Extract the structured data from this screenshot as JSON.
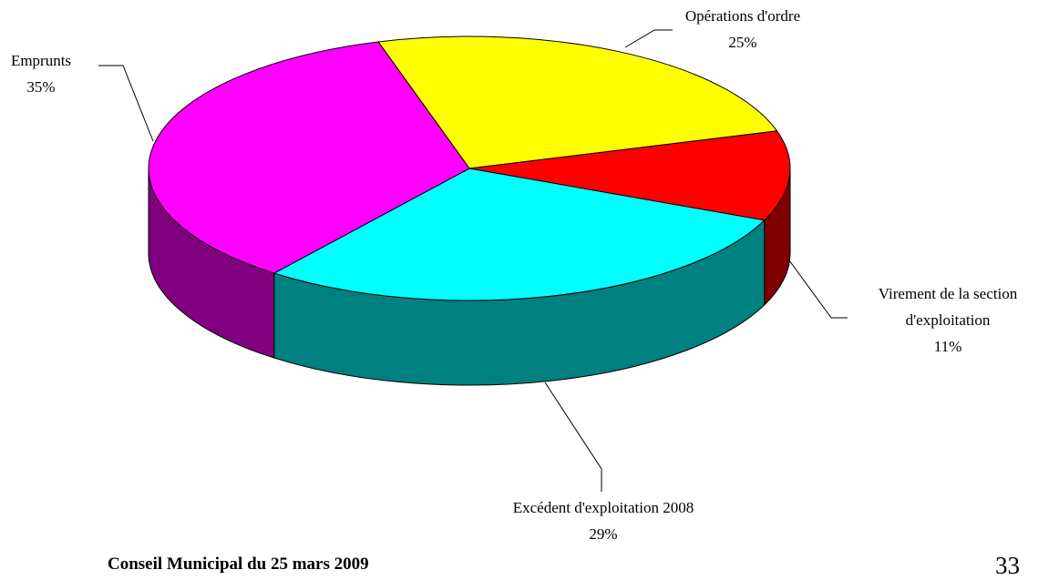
{
  "chart_data": {
    "type": "pie",
    "categories": [
      "Opérations d'ordre",
      "Virement de la section d'exploitation",
      "Excédent d'exploitation 2008",
      "Emprunts"
    ],
    "values": [
      25,
      11,
      29,
      35
    ],
    "value_labels": [
      "25%",
      "11%",
      "29%",
      "35%"
    ],
    "colors": [
      "#ffff00",
      "#ff0000",
      "#00ffff",
      "#ff00ff"
    ],
    "side_colors": [
      "#808000",
      "#800000",
      "#008080",
      "#800080"
    ],
    "three_d": true
  },
  "footer": {
    "text": "Conseil Municipal du 25 mars 2009",
    "page_number": "33"
  }
}
